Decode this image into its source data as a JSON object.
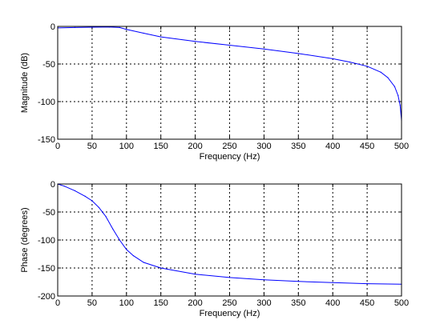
{
  "chart_data": [
    {
      "type": "line",
      "title": "",
      "xlabel": "Frequency (Hz)",
      "ylabel": "Magnitude (dB)",
      "xlim": [
        0,
        500
      ],
      "ylim": [
        -150,
        0
      ],
      "xticks": [
        "0",
        "50",
        "100",
        "150",
        "200",
        "250",
        "300",
        "350",
        "400",
        "450",
        "500"
      ],
      "yticks": [
        "0",
        "-50",
        "-100",
        "-150"
      ],
      "grid": true,
      "line_color": "#0000ff",
      "series": [
        {
          "x": [
            0,
            25,
            50,
            75,
            90,
            100,
            125,
            150,
            200,
            250,
            300,
            350,
            400,
            425,
            450,
            470,
            480,
            490,
            495,
            498,
            500
          ],
          "values": [
            -2,
            -1.5,
            -1,
            -0.8,
            -1.5,
            -4,
            -9,
            -14,
            -20,
            -25,
            -30,
            -36,
            -43,
            -47.5,
            -53,
            -61,
            -68,
            -80,
            -92,
            -105,
            -125
          ]
        }
      ]
    },
    {
      "type": "line",
      "title": "",
      "xlabel": "Frequency (Hz)",
      "ylabel": "Phase (degrees)",
      "xlim": [
        0,
        500
      ],
      "ylim": [
        -200,
        0
      ],
      "xticks": [
        "0",
        "50",
        "100",
        "150",
        "200",
        "250",
        "300",
        "350",
        "400",
        "450",
        "500"
      ],
      "yticks": [
        "0",
        "-50",
        "-100",
        "-150",
        "-200"
      ],
      "grid": true,
      "line_color": "#0000ff",
      "series": [
        {
          "x": [
            0,
            10,
            25,
            40,
            50,
            60,
            70,
            80,
            90,
            100,
            110,
            125,
            150,
            200,
            250,
            300,
            350,
            400,
            450,
            500
          ],
          "values": [
            0,
            -4,
            -12,
            -22,
            -30,
            -42,
            -58,
            -80,
            -100,
            -117,
            -128,
            -140,
            -150,
            -161,
            -167,
            -171,
            -174,
            -176,
            -178,
            -179
          ]
        }
      ]
    }
  ]
}
